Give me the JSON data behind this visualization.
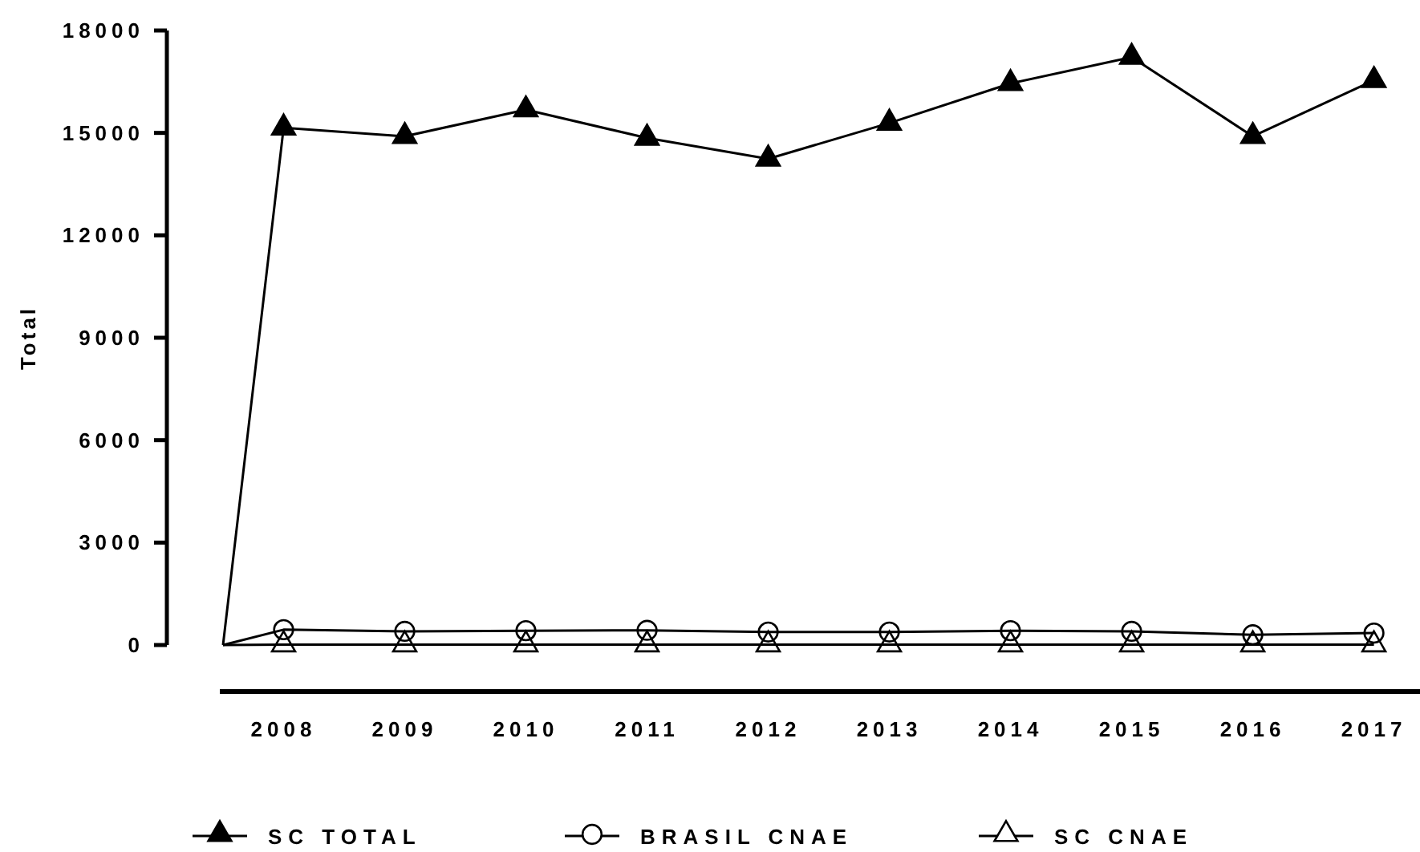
{
  "chart_data": {
    "type": "line",
    "ylabel": "Total",
    "x": [
      2007.5,
      2008,
      2009,
      2010,
      2011,
      2012,
      2013,
      2014,
      2015,
      2016,
      2017
    ],
    "series": [
      {
        "name": "SC TOTAL",
        "color": "#000000",
        "marker": "triangle",
        "values": [
          0,
          15150,
          14900,
          15680,
          14850,
          14240,
          15290,
          16450,
          17220,
          14900,
          16540
        ]
      },
      {
        "name": "BRASIL CNAE",
        "color": "#000000",
        "marker": "circle",
        "values": [
          0,
          450,
          400,
          420,
          430,
          380,
          380,
          420,
          400,
          300,
          350
        ]
      },
      {
        "name": "SC CNAE",
        "color": "#000000",
        "marker": "triangle",
        "values": [
          0,
          10,
          10,
          10,
          10,
          10,
          10,
          10,
          10,
          10,
          10
        ]
      }
    ],
    "xlim": [
      2007.5,
      2017.4
    ],
    "xticks": [
      2008,
      2009,
      2010,
      2011,
      2012,
      2013,
      2014,
      2015,
      2016,
      2017
    ],
    "ylim": [
      0,
      18000
    ],
    "yticks": [
      0,
      3000,
      6000,
      9000,
      12000,
      15000,
      18000
    ],
    "grid": false,
    "legend": "bottom",
    "line_style": "solid"
  }
}
